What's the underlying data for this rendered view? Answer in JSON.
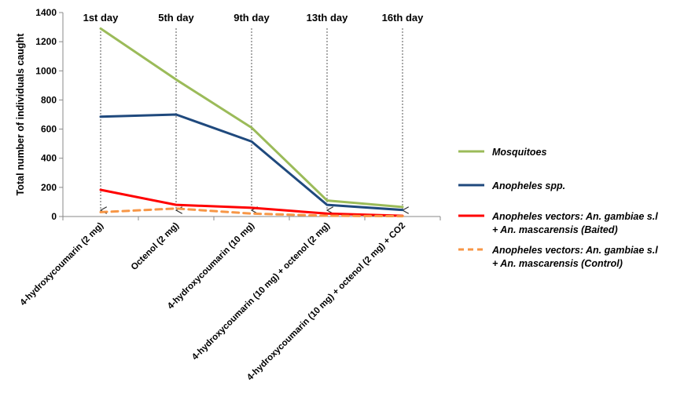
{
  "chart_data": {
    "type": "line",
    "ylabel": "Total number of individuals caught",
    "ylim": [
      0,
      1400
    ],
    "yticks": [
      0,
      200,
      400,
      600,
      800,
      1000,
      1200,
      1400
    ],
    "categories": [
      "4-hydroxycoumarin (2 mg)",
      "Octenol (2 mg)",
      "4-hydroxycoumarin (10 mg)",
      "4-hydroxycoumarin (10 mg) + octenol (2 mg)",
      "4-hydroxycoumarin (10 mg) + octenol (2 mg) + CO2"
    ],
    "day_labels": [
      "1st day",
      "5th day",
      "9th day",
      "13th day",
      "16th day"
    ],
    "series": [
      {
        "name": "Mosquitoes",
        "color": "#9bbb59",
        "dashed": false,
        "values": [
          1290,
          940,
          610,
          110,
          65
        ]
      },
      {
        "name": "Anopheles spp.",
        "color": "#1f497d",
        "dashed": false,
        "values": [
          685,
          700,
          515,
          80,
          45
        ]
      },
      {
        "name": "Anopheles vectors: An. gambiae s.l + An. mascarensis (Baited)",
        "color": "#ff0000",
        "dashed": false,
        "values": [
          183,
          80,
          60,
          20,
          5
        ]
      },
      {
        "name": "Anopheles vectors: An. gambiae s.l + An. mascarensis (Control)",
        "color": "#f79646",
        "dashed": true,
        "values": [
          30,
          55,
          20,
          5,
          2
        ]
      }
    ],
    "legend": {
      "position": "right",
      "lines": [
        [
          "Mosquitoes"
        ],
        [
          "Anopheles spp."
        ],
        [
          "Anopheles vectors: An. gambiae s.l",
          "+ An. mascarensis (Baited)"
        ],
        [
          "Anopheles vectors: An. gambiae s.l",
          "+ An. mascarensis (Control)"
        ]
      ]
    },
    "grid": false
  }
}
